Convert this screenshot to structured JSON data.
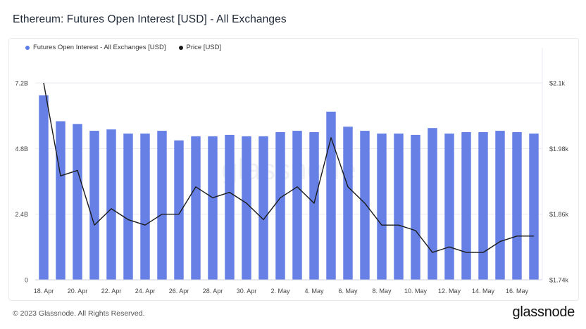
{
  "title": "Ethereum: Futures Open Interest [USD] - All Exchanges",
  "footer": "© 2023 Glassnode. All Rights Reserved.",
  "brand": "glassnode",
  "watermark": "glassnode",
  "colors": {
    "bar": "#6680e6",
    "line": "#1b1b1b",
    "grid": "#e9ebf2",
    "axis_text": "#444444"
  },
  "legend": [
    {
      "label": "Futures Open Interest - All Exchanges [USD]",
      "color": "#5b7be8"
    },
    {
      "label": "Price [USD]",
      "color": "#1b1b1b"
    }
  ],
  "chart_data": {
    "type": "bar",
    "x_tick_labels": [
      "18. Apr",
      "20. Apr",
      "22. Apr",
      "24. Apr",
      "26. Apr",
      "28. Apr",
      "30. Apr",
      "2. May",
      "4. May",
      "6. May",
      "8. May",
      "10. May",
      "12. May",
      "14. May",
      "16. May"
    ],
    "left_axis": {
      "ticks": [
        "0",
        "2.4B",
        "4.8B",
        "7.2B"
      ],
      "values": [
        0,
        2.4,
        4.8,
        7.2
      ],
      "range": [
        0,
        7.2
      ],
      "unit": "B USD"
    },
    "right_axis": {
      "ticks": [
        "$1.74k",
        "$1.86k",
        "$1.98k",
        "$2.1k"
      ],
      "values": [
        1.74,
        1.86,
        1.98,
        2.1
      ],
      "range": [
        1.74,
        2.1
      ],
      "unit": "k USD"
    },
    "grid": true,
    "legend_position": "top-left",
    "series": [
      {
        "name": "Futures Open Interest - All Exchanges [USD]",
        "type": "bar",
        "axis": "left",
        "values": [
          6.75,
          5.8,
          5.7,
          5.45,
          5.5,
          5.35,
          5.35,
          5.45,
          5.1,
          5.25,
          5.25,
          5.3,
          5.25,
          5.25,
          5.4,
          5.45,
          5.4,
          6.15,
          5.6,
          5.45,
          5.35,
          5.35,
          5.3,
          5.55,
          5.35,
          5.4,
          5.4,
          5.45,
          5.4,
          5.35
        ]
      },
      {
        "name": "Price [USD]",
        "type": "line",
        "axis": "left_scaled_to_right",
        "values": [
          2.1,
          1.93,
          1.94,
          1.84,
          1.87,
          1.85,
          1.84,
          1.86,
          1.86,
          1.91,
          1.89,
          1.9,
          1.88,
          1.85,
          1.89,
          1.91,
          1.88,
          2.0,
          1.91,
          1.88,
          1.84,
          1.84,
          1.83,
          1.79,
          1.8,
          1.79,
          1.79,
          1.81,
          1.82,
          1.82
        ]
      }
    ]
  }
}
